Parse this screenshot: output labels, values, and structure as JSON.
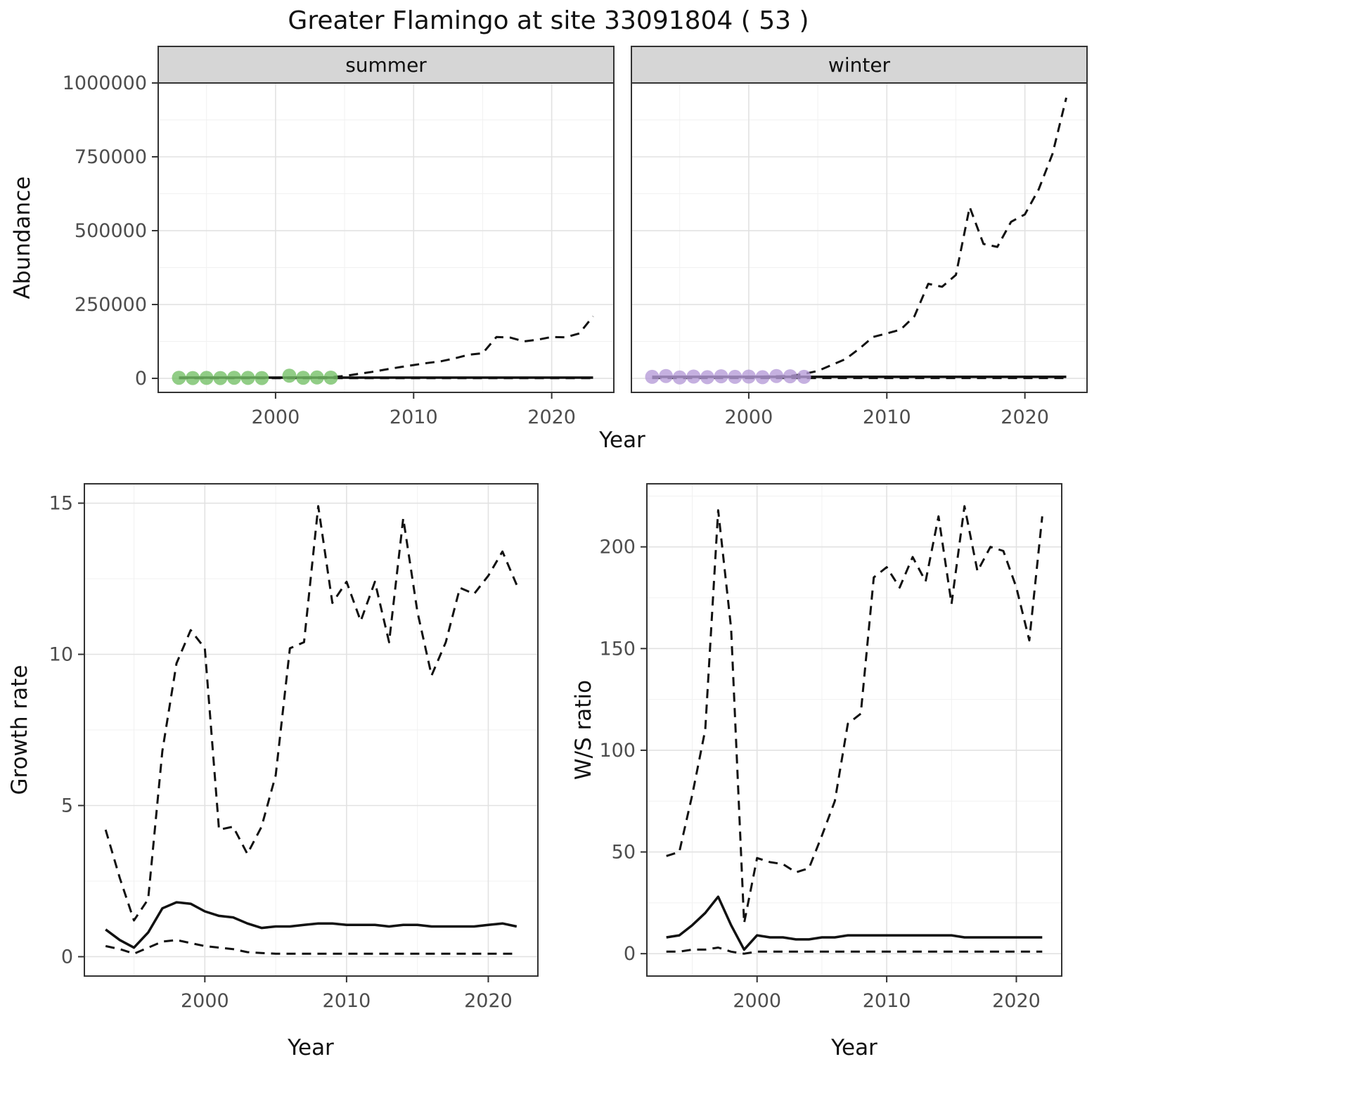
{
  "page": {
    "title": "Greater Flamingo at site 33091804 ( 53 )"
  },
  "colors": {
    "summer_points": "#76c168",
    "winter_points": "#b79cd8",
    "line": "#111111",
    "strip_fill": "#d6d6d6",
    "grid_major": "#e2e2e2",
    "grid_minor": "#f1f1f1"
  },
  "chart_data": [
    {
      "id": "abundance",
      "type": "line",
      "title": "Greater Flamingo at site 33091804 ( 53 )",
      "xlabel": "Year",
      "ylabel": "Abundance",
      "facets": [
        "summer",
        "winter"
      ],
      "xlim": [
        1991.5,
        2024.5
      ],
      "ylim": [
        -47500,
        1000000
      ],
      "xticks": {
        "values": [
          2000,
          2010,
          2020
        ],
        "labels": [
          "2000",
          "2010",
          "2020"
        ]
      },
      "yticks": {
        "values": [
          0,
          250000,
          500000,
          750000,
          1000000
        ],
        "labels": [
          "0",
          "250000",
          "500000",
          "750000",
          "1000000"
        ]
      },
      "xminor": [
        1995,
        2005,
        2015
      ],
      "yminor": [
        125000,
        375000,
        625000,
        875000
      ],
      "years": [
        1993,
        1994,
        1995,
        1996,
        1997,
        1998,
        1999,
        2000,
        2001,
        2002,
        2003,
        2004,
        2005,
        2006,
        2007,
        2008,
        2009,
        2010,
        2011,
        2012,
        2013,
        2014,
        2015,
        2016,
        2017,
        2018,
        2019,
        2020,
        2021,
        2022,
        2023
      ],
      "panels": [
        {
          "facet": "summer",
          "series": [
            {
              "name": "upper-ci",
              "style": "dashed",
              "values": [
                1000,
                1500,
                1200,
                1500,
                2000,
                2500,
                2000,
                2500,
                3000,
                3000,
                3500,
                4000,
                8000,
                15000,
                22000,
                30000,
                38000,
                45000,
                52000,
                58000,
                68000,
                80000,
                85000,
                140000,
                138000,
                125000,
                131000,
                140000,
                139000,
                152000,
                210000
              ]
            },
            {
              "name": "median",
              "style": "solid",
              "const": 2500
            },
            {
              "name": "lower-ci",
              "style": "dashed",
              "const": 500
            },
            {
              "name": "observed-summer",
              "style": "points",
              "color": "#76c168",
              "x": [
                1993,
                1994,
                1995,
                1996,
                1997,
                1998,
                1999,
                2001,
                2002,
                2003,
                2004
              ],
              "y": [
                2000,
                1000,
                1500,
                1000,
                2000,
                1500,
                1000,
                9000,
                2000,
                3000,
                2500
              ]
            }
          ]
        },
        {
          "facet": "winter",
          "series": [
            {
              "name": "upper-ci",
              "style": "dashed",
              "values": [
                2000,
                3000,
                2500,
                3000,
                4000,
                5000,
                4000,
                5000,
                6000,
                7000,
                8000,
                15000,
                25000,
                45000,
                65000,
                100000,
                140000,
                152000,
                165000,
                210000,
                320000,
                310000,
                350000,
                580000,
                455000,
                445000,
                530000,
                555000,
                640000,
                760000,
                950000
              ]
            },
            {
              "name": "median",
              "style": "solid",
              "const": 5000
            },
            {
              "name": "lower-ci",
              "style": "dashed",
              "const": 1000
            },
            {
              "name": "observed-winter",
              "style": "points",
              "color": "#b79cd8",
              "x": [
                1993,
                1994,
                1995,
                1996,
                1997,
                1998,
                1999,
                2000,
                2001,
                2002,
                2003,
                2004
              ],
              "y": [
                5000,
                8000,
                3000,
                6000,
                4000,
                7000,
                5000,
                6000,
                4000,
                8000,
                7000,
                5000
              ]
            }
          ]
        }
      ]
    },
    {
      "id": "growth-rate",
      "type": "line",
      "title": "",
      "xlabel": "Year",
      "ylabel": "Growth rate",
      "xlim": [
        1991.5,
        2023.5
      ],
      "ylim": [
        -0.64,
        15.64
      ],
      "xticks": {
        "values": [
          2000,
          2010,
          2020
        ],
        "labels": [
          "2000",
          "2010",
          "2020"
        ]
      },
      "yticks": {
        "values": [
          0,
          5,
          10,
          15
        ],
        "labels": [
          "0",
          "5",
          "10",
          "15"
        ]
      },
      "xminor": [
        1995,
        2005,
        2015
      ],
      "yminor": [
        2.5,
        7.5,
        12.5
      ],
      "years": [
        1993,
        1994,
        1995,
        1996,
        1997,
        1998,
        1999,
        2000,
        2001,
        2002,
        2003,
        2004,
        2005,
        2006,
        2007,
        2008,
        2009,
        2010,
        2011,
        2012,
        2013,
        2014,
        2015,
        2016,
        2017,
        2018,
        2019,
        2020,
        2021,
        2022
      ],
      "panels": [
        {
          "facet": "",
          "series": [
            {
              "name": "upper-ci",
              "style": "dashed",
              "values": [
                4.2,
                2.6,
                1.2,
                1.9,
                6.8,
                9.7,
                10.8,
                10.2,
                4.2,
                4.3,
                3.4,
                4.3,
                6.0,
                10.2,
                10.4,
                14.9,
                11.7,
                12.4,
                11.1,
                12.4,
                10.4,
                14.5,
                11.4,
                9.3,
                10.4,
                12.2,
                12.0,
                12.6,
                13.4,
                12.3
              ]
            },
            {
              "name": "median",
              "style": "solid",
              "values": [
                0.9,
                0.55,
                0.3,
                0.8,
                1.6,
                1.8,
                1.75,
                1.5,
                1.35,
                1.3,
                1.1,
                0.95,
                1.0,
                1.0,
                1.05,
                1.1,
                1.1,
                1.05,
                1.05,
                1.05,
                1.0,
                1.05,
                1.05,
                1.0,
                1.0,
                1.0,
                1.0,
                1.05,
                1.1,
                1.0
              ]
            },
            {
              "name": "lower-ci",
              "style": "dashed",
              "values": [
                0.35,
                0.25,
                0.1,
                0.3,
                0.5,
                0.55,
                0.45,
                0.35,
                0.3,
                0.25,
                0.15,
                0.12,
                0.1,
                0.1,
                0.1,
                0.1,
                0.1,
                0.1,
                0.1,
                0.1,
                0.1,
                0.1,
                0.1,
                0.1,
                0.1,
                0.1,
                0.1,
                0.1,
                0.1,
                0.1
              ]
            }
          ]
        }
      ]
    },
    {
      "id": "ws-ratio",
      "type": "line",
      "title": "",
      "xlabel": "Year",
      "ylabel": "W/S ratio",
      "xlim": [
        1991.5,
        2023.5
      ],
      "ylim": [
        -11,
        231
      ],
      "xticks": {
        "values": [
          2000,
          2010,
          2020
        ],
        "labels": [
          "2000",
          "2010",
          "2020"
        ]
      },
      "yticks": {
        "values": [
          0,
          50,
          100,
          150,
          200
        ],
        "labels": [
          "0",
          "50",
          "100",
          "150",
          "200"
        ]
      },
      "xminor": [
        1995,
        2005,
        2015
      ],
      "yminor": [
        25,
        75,
        125,
        175,
        225
      ],
      "years": [
        1993,
        1994,
        1995,
        1996,
        1997,
        1998,
        1999,
        2000,
        2001,
        2002,
        2003,
        2004,
        2005,
        2006,
        2007,
        2008,
        2009,
        2010,
        2011,
        2012,
        2013,
        2014,
        2015,
        2016,
        2017,
        2018,
        2019,
        2020,
        2021,
        2022
      ],
      "panels": [
        {
          "facet": "",
          "series": [
            {
              "name": "upper-ci",
              "style": "dashed",
              "values": [
                48,
                50,
                78,
                110,
                218,
                160,
                15,
                47,
                45,
                44,
                40,
                42,
                58,
                75,
                113,
                118,
                185,
                190,
                180,
                195,
                183,
                215,
                172,
                220,
                188,
                200,
                198,
                180,
                154,
                215
              ]
            },
            {
              "name": "median",
              "style": "solid",
              "values": [
                8,
                9,
                14,
                20,
                28,
                14,
                2,
                9,
                8,
                8,
                7,
                7,
                8,
                8,
                9,
                9,
                9,
                9,
                9,
                9,
                9,
                9,
                9,
                8,
                8,
                8,
                8,
                8,
                8,
                8
              ]
            },
            {
              "name": "lower-ci",
              "style": "dashed",
              "values": [
                1,
                1,
                2,
                2,
                3,
                1,
                0,
                1,
                1,
                1,
                1,
                1,
                1,
                1,
                1,
                1,
                1,
                1,
                1,
                1,
                1,
                1,
                1,
                1,
                1,
                1,
                1,
                1,
                1,
                1
              ]
            }
          ]
        }
      ]
    }
  ]
}
